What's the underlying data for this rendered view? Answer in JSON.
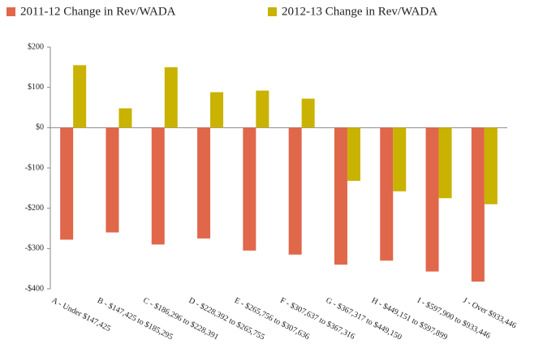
{
  "chart_data": {
    "type": "bar",
    "categories": [
      "A - Under $147,425",
      "B - $147,425 to $185,295",
      "C - $186,296 to $228,391",
      "D - $228,392 to $265,755",
      "E - $265,756 to $307,636",
      "F - $307,637 to $367,316",
      "G - $367,317 to $449,150",
      "H - $449,151 to $597,899",
      "I - $597,900 to $933,446",
      "J - Over $933,446"
    ],
    "series": [
      {
        "name": "2011-12 Change in Rev/WADA",
        "color": "#e0674a",
        "values": [
          -278,
          -260,
          -290,
          -275,
          -305,
          -315,
          -340,
          -330,
          -357,
          -382
        ]
      },
      {
        "name": "2012-13 Change in Rev/WADA",
        "color": "#c9b200",
        "values": [
          155,
          48,
          150,
          88,
          92,
          72,
          -132,
          -158,
          -175,
          -190
        ]
      }
    ],
    "ylim": [
      -400,
      200
    ],
    "yticks": [
      {
        "value": -400,
        "label": "-$400"
      },
      {
        "value": -300,
        "label": "-$300"
      },
      {
        "value": -200,
        "label": "-$200"
      },
      {
        "value": -100,
        "label": "-$100"
      },
      {
        "value": 0,
        "label": "$0"
      },
      {
        "value": 100,
        "label": "$100"
      },
      {
        "value": 200,
        "label": "$200"
      }
    ],
    "legend": "top",
    "grid": false
  }
}
